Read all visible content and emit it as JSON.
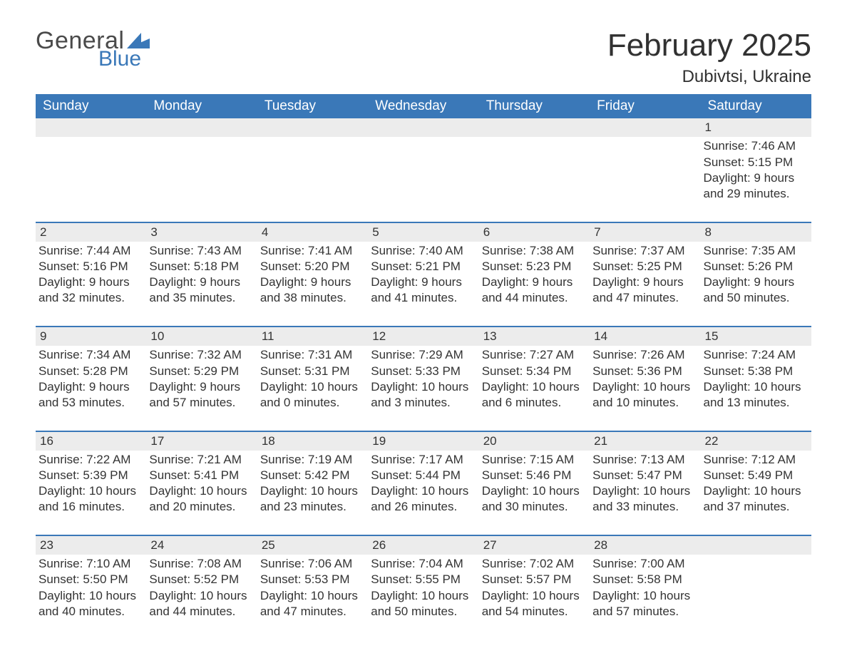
{
  "brand": {
    "word1": "General",
    "word2": "Blue",
    "flag_color": "#3a78b8"
  },
  "title": {
    "month": "February 2025",
    "location": "Dubivtsi, Ukraine"
  },
  "colors": {
    "header_bg": "#3a78b8",
    "header_text": "#ffffff",
    "daynum_bg": "#ececec",
    "rule": "#3a78b8",
    "body_text": "#333333",
    "page_bg": "#ffffff"
  },
  "weekdays": [
    "Sunday",
    "Monday",
    "Tuesday",
    "Wednesday",
    "Thursday",
    "Friday",
    "Saturday"
  ],
  "weeks": [
    [
      {
        "blank": true
      },
      {
        "blank": true
      },
      {
        "blank": true
      },
      {
        "blank": true
      },
      {
        "blank": true
      },
      {
        "blank": true
      },
      {
        "day": "1",
        "sunrise": "Sunrise: 7:46 AM",
        "sunset": "Sunset: 5:15 PM",
        "day1": "Daylight: 9 hours",
        "day2": "and 29 minutes."
      }
    ],
    [
      {
        "day": "2",
        "sunrise": "Sunrise: 7:44 AM",
        "sunset": "Sunset: 5:16 PM",
        "day1": "Daylight: 9 hours",
        "day2": "and 32 minutes."
      },
      {
        "day": "3",
        "sunrise": "Sunrise: 7:43 AM",
        "sunset": "Sunset: 5:18 PM",
        "day1": "Daylight: 9 hours",
        "day2": "and 35 minutes."
      },
      {
        "day": "4",
        "sunrise": "Sunrise: 7:41 AM",
        "sunset": "Sunset: 5:20 PM",
        "day1": "Daylight: 9 hours",
        "day2": "and 38 minutes."
      },
      {
        "day": "5",
        "sunrise": "Sunrise: 7:40 AM",
        "sunset": "Sunset: 5:21 PM",
        "day1": "Daylight: 9 hours",
        "day2": "and 41 minutes."
      },
      {
        "day": "6",
        "sunrise": "Sunrise: 7:38 AM",
        "sunset": "Sunset: 5:23 PM",
        "day1": "Daylight: 9 hours",
        "day2": "and 44 minutes."
      },
      {
        "day": "7",
        "sunrise": "Sunrise: 7:37 AM",
        "sunset": "Sunset: 5:25 PM",
        "day1": "Daylight: 9 hours",
        "day2": "and 47 minutes."
      },
      {
        "day": "8",
        "sunrise": "Sunrise: 7:35 AM",
        "sunset": "Sunset: 5:26 PM",
        "day1": "Daylight: 9 hours",
        "day2": "and 50 minutes."
      }
    ],
    [
      {
        "day": "9",
        "sunrise": "Sunrise: 7:34 AM",
        "sunset": "Sunset: 5:28 PM",
        "day1": "Daylight: 9 hours",
        "day2": "and 53 minutes."
      },
      {
        "day": "10",
        "sunrise": "Sunrise: 7:32 AM",
        "sunset": "Sunset: 5:29 PM",
        "day1": "Daylight: 9 hours",
        "day2": "and 57 minutes."
      },
      {
        "day": "11",
        "sunrise": "Sunrise: 7:31 AM",
        "sunset": "Sunset: 5:31 PM",
        "day1": "Daylight: 10 hours",
        "day2": "and 0 minutes."
      },
      {
        "day": "12",
        "sunrise": "Sunrise: 7:29 AM",
        "sunset": "Sunset: 5:33 PM",
        "day1": "Daylight: 10 hours",
        "day2": "and 3 minutes."
      },
      {
        "day": "13",
        "sunrise": "Sunrise: 7:27 AM",
        "sunset": "Sunset: 5:34 PM",
        "day1": "Daylight: 10 hours",
        "day2": "and 6 minutes."
      },
      {
        "day": "14",
        "sunrise": "Sunrise: 7:26 AM",
        "sunset": "Sunset: 5:36 PM",
        "day1": "Daylight: 10 hours",
        "day2": "and 10 minutes."
      },
      {
        "day": "15",
        "sunrise": "Sunrise: 7:24 AM",
        "sunset": "Sunset: 5:38 PM",
        "day1": "Daylight: 10 hours",
        "day2": "and 13 minutes."
      }
    ],
    [
      {
        "day": "16",
        "sunrise": "Sunrise: 7:22 AM",
        "sunset": "Sunset: 5:39 PM",
        "day1": "Daylight: 10 hours",
        "day2": "and 16 minutes."
      },
      {
        "day": "17",
        "sunrise": "Sunrise: 7:21 AM",
        "sunset": "Sunset: 5:41 PM",
        "day1": "Daylight: 10 hours",
        "day2": "and 20 minutes."
      },
      {
        "day": "18",
        "sunrise": "Sunrise: 7:19 AM",
        "sunset": "Sunset: 5:42 PM",
        "day1": "Daylight: 10 hours",
        "day2": "and 23 minutes."
      },
      {
        "day": "19",
        "sunrise": "Sunrise: 7:17 AM",
        "sunset": "Sunset: 5:44 PM",
        "day1": "Daylight: 10 hours",
        "day2": "and 26 minutes."
      },
      {
        "day": "20",
        "sunrise": "Sunrise: 7:15 AM",
        "sunset": "Sunset: 5:46 PM",
        "day1": "Daylight: 10 hours",
        "day2": "and 30 minutes."
      },
      {
        "day": "21",
        "sunrise": "Sunrise: 7:13 AM",
        "sunset": "Sunset: 5:47 PM",
        "day1": "Daylight: 10 hours",
        "day2": "and 33 minutes."
      },
      {
        "day": "22",
        "sunrise": "Sunrise: 7:12 AM",
        "sunset": "Sunset: 5:49 PM",
        "day1": "Daylight: 10 hours",
        "day2": "and 37 minutes."
      }
    ],
    [
      {
        "day": "23",
        "sunrise": "Sunrise: 7:10 AM",
        "sunset": "Sunset: 5:50 PM",
        "day1": "Daylight: 10 hours",
        "day2": "and 40 minutes."
      },
      {
        "day": "24",
        "sunrise": "Sunrise: 7:08 AM",
        "sunset": "Sunset: 5:52 PM",
        "day1": "Daylight: 10 hours",
        "day2": "and 44 minutes."
      },
      {
        "day": "25",
        "sunrise": "Sunrise: 7:06 AM",
        "sunset": "Sunset: 5:53 PM",
        "day1": "Daylight: 10 hours",
        "day2": "and 47 minutes."
      },
      {
        "day": "26",
        "sunrise": "Sunrise: 7:04 AM",
        "sunset": "Sunset: 5:55 PM",
        "day1": "Daylight: 10 hours",
        "day2": "and 50 minutes."
      },
      {
        "day": "27",
        "sunrise": "Sunrise: 7:02 AM",
        "sunset": "Sunset: 5:57 PM",
        "day1": "Daylight: 10 hours",
        "day2": "and 54 minutes."
      },
      {
        "day": "28",
        "sunrise": "Sunrise: 7:00 AM",
        "sunset": "Sunset: 5:58 PM",
        "day1": "Daylight: 10 hours",
        "day2": "and 57 minutes."
      },
      {
        "blank": true
      }
    ]
  ]
}
